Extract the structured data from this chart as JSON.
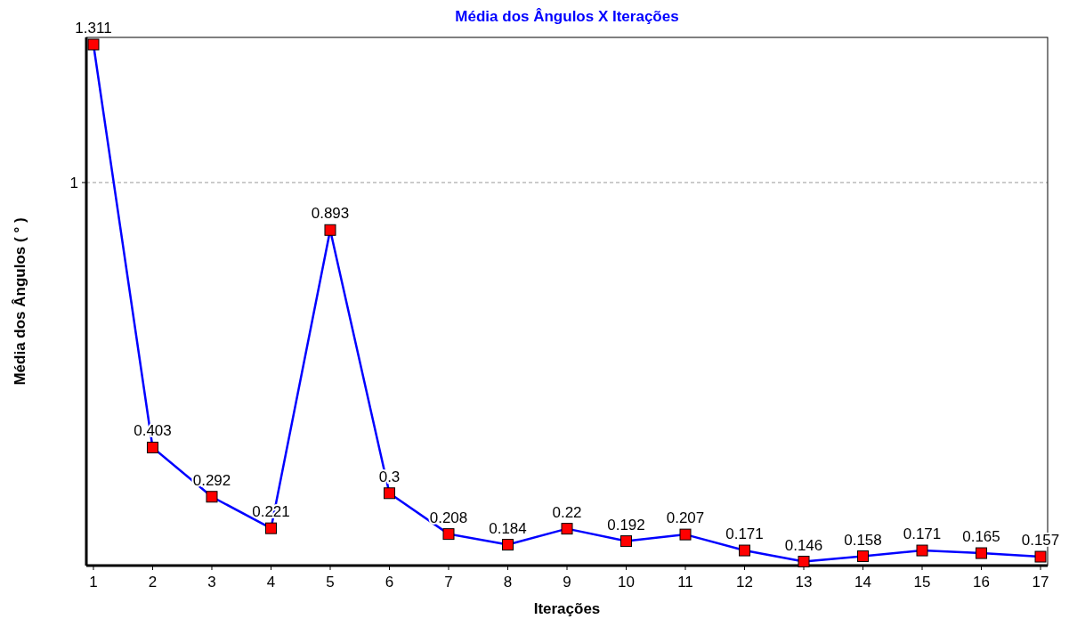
{
  "chart_data": {
    "type": "line",
    "title": "Média dos Ângulos X Iterações",
    "xlabel": "Iterações",
    "ylabel": "Média dos Ângulos ( ° )",
    "x": [
      1,
      2,
      3,
      4,
      5,
      6,
      7,
      8,
      9,
      10,
      11,
      12,
      13,
      14,
      15,
      16,
      17
    ],
    "series": [
      {
        "color": "#0000ff",
        "colors": [
          "#ff0000",
          "#ff0000",
          "#ff0000",
          "#ff0000",
          "#ff0000",
          "#ff0000",
          "#ff0000",
          "#ff0000",
          "#ff0000",
          "#ff0000",
          "#ff0000",
          "#ff0000",
          "#ff0000",
          "#ff0000",
          "#ff0000",
          "#ff0000",
          "#ff0000"
        ],
        "values": [
          1.311,
          0.403,
          0.292,
          0.221,
          0.893,
          0.3,
          0.208,
          0.184,
          0.22,
          0.192,
          0.207,
          0.171,
          0.146,
          0.158,
          0.171,
          0.165,
          0.157
        ]
      }
    ],
    "xlim": [
      0.88,
      17.12
    ],
    "xticks": [
      1,
      2,
      3,
      4,
      5,
      6,
      7,
      8,
      9,
      10,
      11,
      12,
      13,
      14,
      15,
      16,
      17
    ],
    "ylim": [
      0.137,
      1.327
    ],
    "ref_lines": [
      {
        "axis": "y",
        "value": 1,
        "label": "1",
        "color": "#999999",
        "line_style": "dashed"
      }
    ],
    "data_labels": true,
    "marker": "square",
    "line_style": "solid"
  }
}
